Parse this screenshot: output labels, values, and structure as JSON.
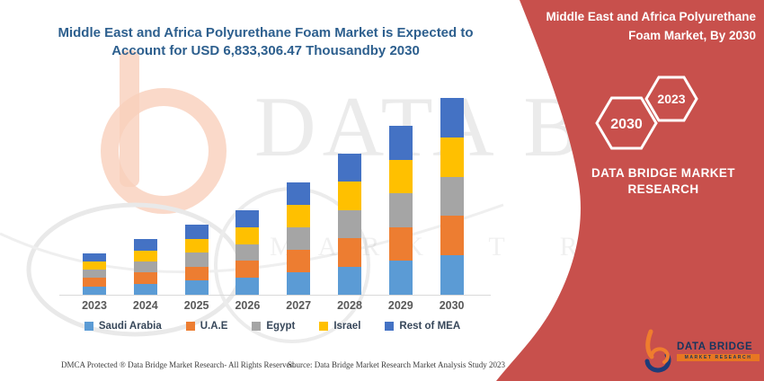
{
  "chart_data": {
    "type": "bar",
    "stacked": true,
    "title": "Middle East and Africa Polyurethane Foam Market is Expected to Account for USD 6,833,306.47 Thousandby 2030",
    "unit": "USD Thousand",
    "categories": [
      "2023",
      "2024",
      "2025",
      "2026",
      "2027",
      "2028",
      "2029",
      "2030"
    ],
    "series": [
      {
        "name": "Saudi Arabia",
        "color": "#5b9bd5",
        "values": [
          290000,
          386000,
          486000,
          586000,
          780000,
          980000,
          1174000,
          1366661.29
        ]
      },
      {
        "name": "U.A.E",
        "color": "#ed7d31",
        "values": [
          290000,
          386000,
          486000,
          586000,
          780000,
          980000,
          1174000,
          1366661.29
        ]
      },
      {
        "name": "Egypt",
        "color": "#a5a5a5",
        "values": [
          290000,
          386000,
          486000,
          586000,
          780000,
          980000,
          1174000,
          1366661.29
        ]
      },
      {
        "name": "Israel",
        "color": "#ffc000",
        "values": [
          290000,
          386000,
          486000,
          586000,
          780000,
          980000,
          1174000,
          1366661.29
        ]
      },
      {
        "name": "Rest of MEA",
        "color": "#4472c4",
        "values": [
          290000,
          386000,
          486000,
          586000,
          780000,
          980000,
          1174000,
          1366661.29
        ]
      }
    ],
    "totals_estimated": [
      1450000,
      1930000,
      2430000,
      2930000,
      3900000,
      4900000,
      5870000,
      6833306.47
    ],
    "xlabel": "",
    "ylabel": "",
    "grid": false,
    "legend_position": "bottom",
    "note": "Per-country split estimated from segment heights; 2030 total stated in title as USD 6,833,306.47 Thousand"
  },
  "right_panel": {
    "accent_color": "#c8504c",
    "title_line1": "Middle East and Africa Polyurethane",
    "title_line2": "Foam Market, By 2030",
    "hexagon_large": "2030",
    "hexagon_small": "2023",
    "brand": "DATA BRIDGE MARKET RESEARCH",
    "logo_name": "DATA BRIDGE",
    "logo_sub": "MARKET RESEARCH"
  },
  "watermark": {
    "line1": "DATA BRIDGE",
    "line2": "MARKET RESEARCH"
  },
  "footer": {
    "dmca": "DMCA Protected ® Data Bridge Market Research-  All Rights Reserved.",
    "source": "Source: Data Bridge Market Research  Market Analysis Study 2023"
  }
}
